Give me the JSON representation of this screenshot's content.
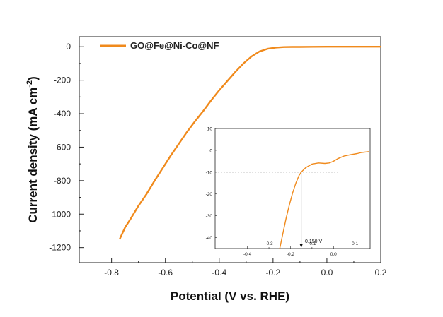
{
  "chart_data": [
    {
      "type": "line",
      "xlabel": "Potential (V vs. RHE)",
      "ylabel": "Current density (mA cm",
      "ylabel_sup": "-2",
      "ylabel_close": ")",
      "xlim": [
        -0.92,
        0.2
      ],
      "ylim": [
        -1290,
        60
      ],
      "xticks": [
        -0.8,
        -0.6,
        -0.4,
        -0.2,
        0.0,
        0.2
      ],
      "xtick_labels": [
        "-0.8",
        "-0.6",
        "-0.4",
        "-0.2",
        "0.0",
        "0.2"
      ],
      "yticks": [
        0,
        -200,
        -400,
        -600,
        -800,
        -1000,
        -1200
      ],
      "ytick_labels": [
        "0",
        "-200",
        "-400",
        "-600",
        "-800",
        "-1000",
        "-1200"
      ],
      "legend_position": "top-left",
      "grid": false,
      "series": [
        {
          "name": "GO@Fe@Ni-Co@NF",
          "color": "#F08A1C",
          "x": [
            -0.77,
            -0.75,
            -0.73,
            -0.7,
            -0.67,
            -0.64,
            -0.61,
            -0.58,
            -0.55,
            -0.52,
            -0.49,
            -0.46,
            -0.43,
            -0.4,
            -0.37,
            -0.34,
            -0.31,
            -0.28,
            -0.25,
            -0.22,
            -0.19,
            -0.16,
            -0.13,
            -0.1,
            -0.05,
            0.0,
            0.1,
            0.2
          ],
          "y": [
            -1150,
            -1080,
            -1030,
            -950,
            -880,
            -800,
            -725,
            -650,
            -580,
            -510,
            -445,
            -385,
            -320,
            -260,
            -205,
            -150,
            -100,
            -58,
            -28,
            -12,
            -5,
            -2,
            -1,
            -1,
            -0.5,
            0,
            0,
            0
          ]
        }
      ]
    },
    {
      "type": "line",
      "inset": true,
      "xlim": [
        -0.55,
        0.17
      ],
      "ylim": [
        -45,
        10
      ],
      "xticks": [
        -0.4,
        -0.2,
        0.0
      ],
      "xtick_labels": [
        "-0.4",
        "-0.2",
        "0.0"
      ],
      "xticks_minor": [
        -0.3,
        -0.1,
        0.1
      ],
      "xtick_minor_labels": [
        "-0.3",
        "-0.1",
        "0.1"
      ],
      "yticks": [
        10,
        0,
        -10,
        -20,
        -30,
        -40
      ],
      "ytick_labels": [
        "10",
        "0",
        "-10",
        "-20",
        "-30",
        "-40"
      ],
      "reference_y": -10,
      "reference_x": -0.15,
      "annotation": "-0.150 V",
      "series": [
        {
          "color": "#F08A1C",
          "x": [
            -0.25,
            -0.235,
            -0.22,
            -0.205,
            -0.19,
            -0.175,
            -0.16,
            -0.15,
            -0.13,
            -0.1,
            -0.07,
            -0.04,
            -0.02,
            0.0,
            0.02,
            0.05,
            0.08,
            0.11,
            0.13,
            0.165
          ],
          "y": [
            -45,
            -38,
            -31,
            -25,
            -19.5,
            -15,
            -11.5,
            -10,
            -8,
            -6.3,
            -5.8,
            -6.0,
            -5.8,
            -5.0,
            -3.8,
            -2.6,
            -2.0,
            -1.5,
            -1.0,
            -0.6
          ]
        }
      ]
    }
  ]
}
